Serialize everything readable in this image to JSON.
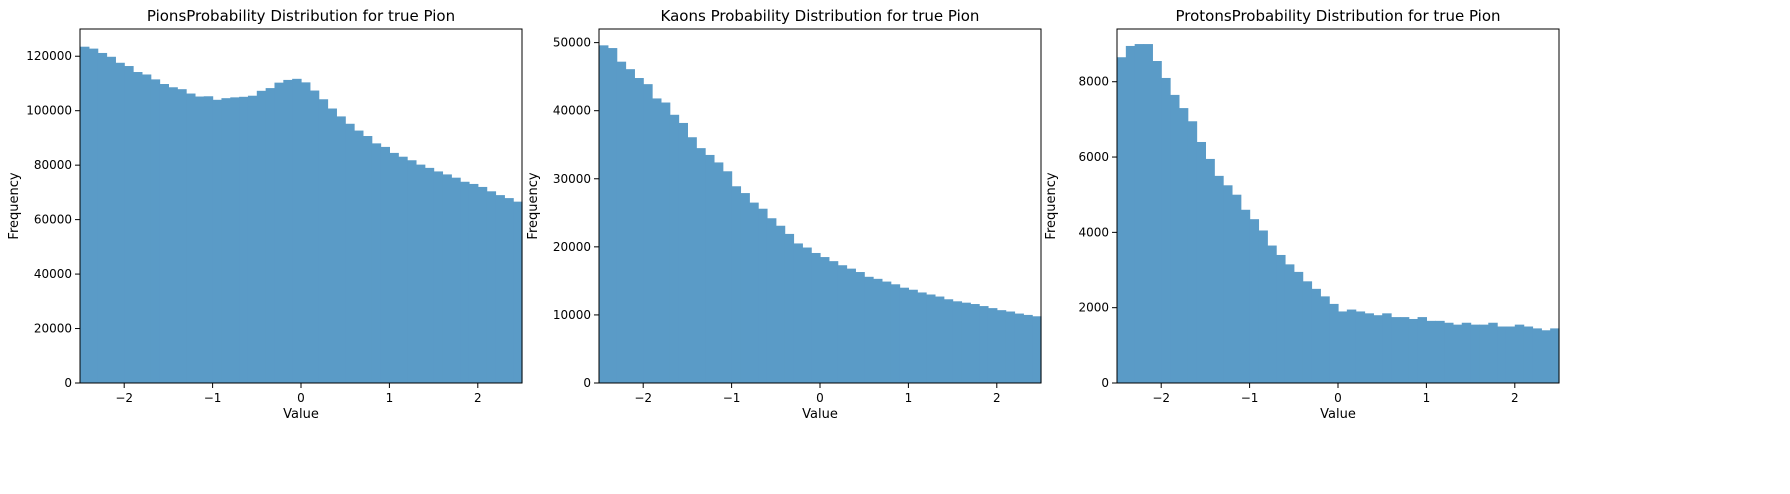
{
  "chart_data": [
    {
      "type": "bar",
      "title": "PionsProbability Distribution for true  Pion",
      "xlabel": "Value",
      "ylabel": "Frequency",
      "xlim": [
        -2.5,
        2.5
      ],
      "ylim": [
        0,
        130000
      ],
      "xticks": [
        -2,
        -1,
        0,
        1,
        2
      ],
      "xtick_labels": [
        "−2",
        "−1",
        "0",
        "1",
        "2"
      ],
      "yticks": [
        0,
        20000,
        40000,
        60000,
        80000,
        100000,
        120000
      ],
      "ytick_labels": [
        "0",
        "20000",
        "40000",
        "60000",
        "80000",
        "100000",
        "120000"
      ],
      "color": "#5a9bc7",
      "bin_start": -2.5,
      "bin_width": 0.1,
      "values": [
        123500,
        122800,
        121200,
        119800,
        117600,
        116400,
        114200,
        113300,
        111500,
        109800,
        108600,
        107900,
        106300,
        105200,
        105300,
        104000,
        104600,
        104900,
        105100,
        105500,
        107300,
        108300,
        110300,
        111300,
        111700,
        110400,
        107400,
        104200,
        100800,
        97900,
        95200,
        92700,
        90700,
        88000,
        86700,
        84500,
        83100,
        81800,
        80200,
        79000,
        77700,
        76600,
        75400,
        73900,
        73100,
        72000,
        70400,
        69000,
        67900,
        66600,
        65300
      ]
    },
    {
      "type": "bar",
      "title": "Kaons Probability Distribution for  true Pion",
      "xlabel": "Value",
      "ylabel": "Frequency",
      "xlim": [
        -2.5,
        2.5
      ],
      "ylim": [
        0,
        52000
      ],
      "xticks": [
        -2,
        -1,
        0,
        1,
        2
      ],
      "xtick_labels": [
        "−2",
        "−1",
        "0",
        "1",
        "2"
      ],
      "yticks": [
        0,
        10000,
        20000,
        30000,
        40000,
        50000
      ],
      "ytick_labels": [
        "0",
        "10000",
        "20000",
        "30000",
        "40000",
        "50000"
      ],
      "color": "#5a9bc7",
      "bin_start": -2.5,
      "bin_width": 0.1,
      "values": [
        49600,
        49200,
        47200,
        46100,
        44800,
        43900,
        41800,
        41200,
        39400,
        38200,
        36100,
        34500,
        33500,
        32400,
        31100,
        28900,
        27900,
        26500,
        25600,
        24200,
        23100,
        21900,
        20500,
        19900,
        19100,
        18500,
        17900,
        17300,
        16800,
        16300,
        15600,
        15300,
        14900,
        14500,
        14000,
        13700,
        13300,
        13000,
        12700,
        12300,
        12000,
        11800,
        11600,
        11300,
        11000,
        10700,
        10500,
        10200,
        10000,
        9800,
        9500
      ]
    },
    {
      "type": "bar",
      "title": "ProtonsProbability Distribution for  true Pion",
      "xlabel": "Value",
      "ylabel": "Frequency",
      "xlim": [
        -2.5,
        2.5
      ],
      "ylim": [
        0,
        9400
      ],
      "xticks": [
        -2,
        -1,
        0,
        1,
        2
      ],
      "xtick_labels": [
        "−2",
        "−1",
        "0",
        "1",
        "2"
      ],
      "yticks": [
        0,
        2000,
        4000,
        6000,
        8000
      ],
      "ytick_labels": [
        "0",
        "2000",
        "4000",
        "6000",
        "8000"
      ],
      "color": "#5a9bc7",
      "bin_start": -2.5,
      "bin_width": 0.1,
      "values": [
        8650,
        8950,
        9000,
        9000,
        8550,
        8100,
        7650,
        7300,
        6950,
        6400,
        5950,
        5500,
        5250,
        5000,
        4600,
        4350,
        4050,
        3650,
        3400,
        3150,
        2950,
        2700,
        2500,
        2300,
        2100,
        1900,
        1950,
        1900,
        1850,
        1800,
        1850,
        1750,
        1750,
        1700,
        1750,
        1650,
        1650,
        1600,
        1550,
        1600,
        1550,
        1550,
        1600,
        1500,
        1500,
        1550,
        1500,
        1450,
        1400,
        1450,
        1400
      ]
    }
  ]
}
